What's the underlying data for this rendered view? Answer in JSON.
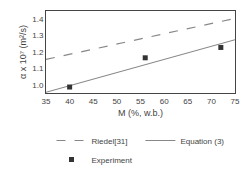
{
  "chart_data": {
    "type": "line",
    "xlabel": "M (%, w.b.)",
    "ylabel": "α x 10⁷ (m²/s)",
    "xlim": [
      35,
      75
    ],
    "ylim": [
      0.95,
      1.45
    ],
    "xticks": [
      35,
      40,
      45,
      50,
      55,
      60,
      65,
      70,
      75
    ],
    "yticks": [
      {
        "value": 1.0,
        "label": "1.0"
      },
      1.1,
      1.2,
      1.3,
      1.4
    ],
    "grid": false,
    "legend": "bottom",
    "series": [
      {
        "name": "Riedel[31]",
        "type": "line",
        "line_style": "dashed",
        "color": "#888888",
        "x": [
          35,
          75
        ],
        "values": [
          1.155,
          1.405
        ]
      },
      {
        "name": "Equation (3)",
        "type": "line",
        "line_style": "solid",
        "color": "#888888",
        "x": [
          35,
          75
        ],
        "values": [
          0.955,
          1.275
        ]
      },
      {
        "name": "Experiment",
        "type": "scatter",
        "marker": "square",
        "color": "#333333",
        "x": [
          40,
          56,
          72
        ],
        "values": [
          0.987,
          1.165,
          1.228
        ]
      }
    ]
  }
}
